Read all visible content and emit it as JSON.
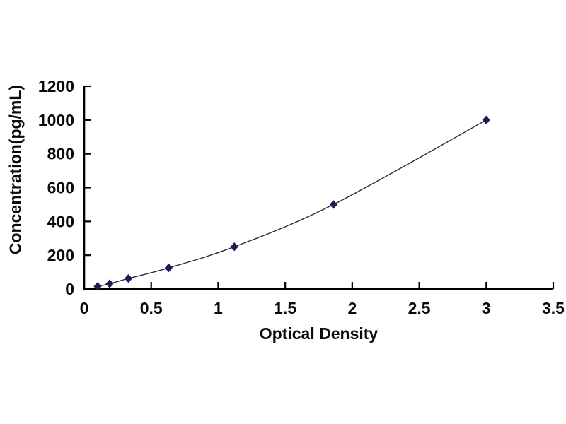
{
  "page": {
    "background_color": "#ffffff"
  },
  "chart_data": {
    "type": "line",
    "title": "",
    "xlabel": "Optical Density",
    "ylabel": "Concentration(pg/mL)",
    "xlim": [
      0,
      3.5
    ],
    "ylim": [
      0,
      1200
    ],
    "x_ticks": [
      0,
      0.5,
      1,
      1.5,
      2,
      2.5,
      3,
      3.5
    ],
    "y_ticks": [
      0,
      200,
      400,
      600,
      800,
      1000,
      1200
    ],
    "grid": "off",
    "legend": "none",
    "axis_color": "#000000",
    "text_color": "#0a0a0a",
    "series": [
      {
        "name": "standard-curve",
        "marker": "diamond",
        "marker_color": "#1e1b55",
        "line_color": "#2a2a3e",
        "points": [
          {
            "x": 0.1,
            "y": 15.6
          },
          {
            "x": 0.19,
            "y": 31.2
          },
          {
            "x": 0.33,
            "y": 62.5
          },
          {
            "x": 0.63,
            "y": 125
          },
          {
            "x": 1.12,
            "y": 250
          },
          {
            "x": 1.86,
            "y": 500
          },
          {
            "x": 3.0,
            "y": 1000
          }
        ]
      }
    ]
  }
}
